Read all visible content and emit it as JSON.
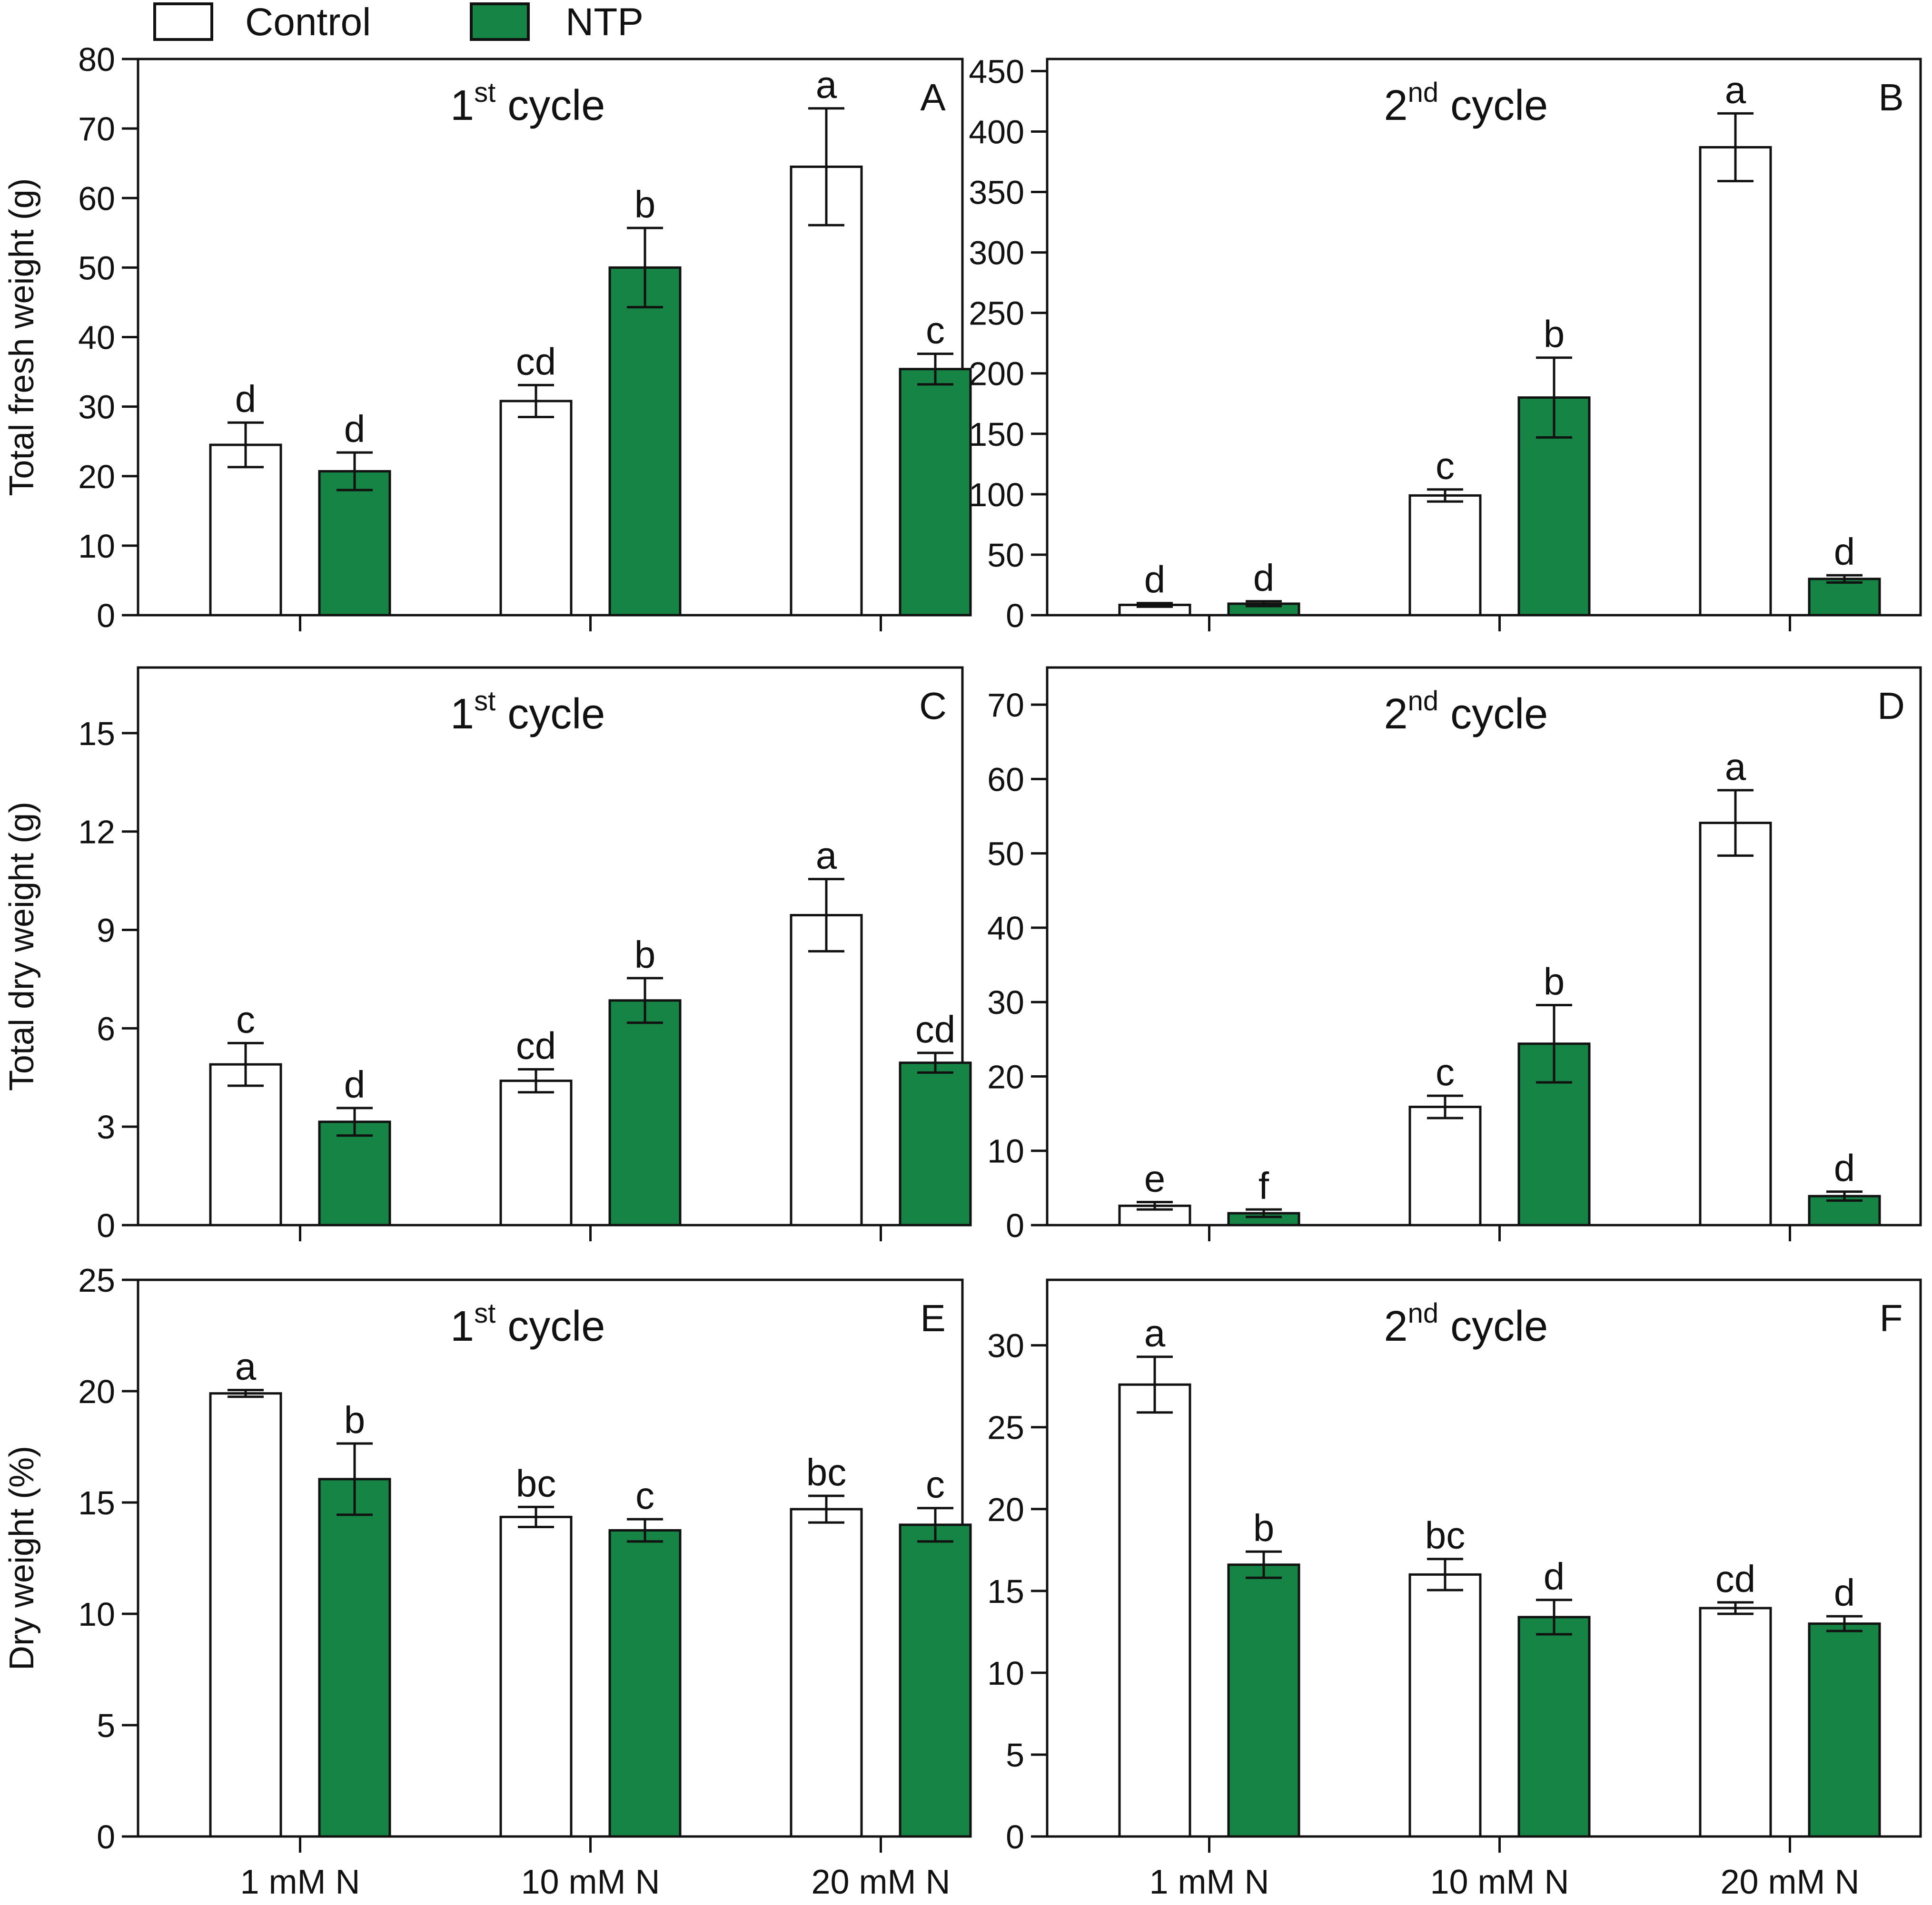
{
  "colors": {
    "control": "#ffffff",
    "ntp": "#168444",
    "stroke": "#111111"
  },
  "legend": [
    {
      "label": "Control",
      "color": "#ffffff"
    },
    {
      "label": "NTP",
      "color": "#168444"
    }
  ],
  "x_categories": [
    "1 mM N",
    "10 mM N",
    "20 mM N"
  ],
  "chart_data": [
    {
      "id": "A",
      "type": "bar",
      "letter": "A",
      "title_main": "1",
      "title_sup": "st",
      "title_rest": " cycle",
      "ylabel": "Total fresh weight (g)",
      "ylim": [
        0,
        80
      ],
      "yticks": [
        0,
        10,
        20,
        30,
        40,
        50,
        60,
        70,
        80
      ],
      "categories": [
        "1 mM N",
        "10 mM N",
        "20 mM N"
      ],
      "series": [
        {
          "name": "Control",
          "values": [
            24.5,
            30.8,
            64.5
          ],
          "errors": [
            3.2,
            2.3,
            8.4
          ],
          "sig": [
            "d",
            "cd",
            "a"
          ]
        },
        {
          "name": "NTP",
          "values": [
            20.7,
            50.0,
            35.4
          ],
          "errors": [
            2.7,
            5.7,
            2.2
          ],
          "sig": [
            "d",
            "b",
            "c"
          ]
        }
      ]
    },
    {
      "id": "B",
      "type": "bar",
      "letter": "B",
      "title_main": "2",
      "title_sup": "nd",
      "title_rest": " cycle",
      "ylabel": "",
      "ylim": [
        0,
        460
      ],
      "yticks": [
        0,
        50,
        100,
        150,
        200,
        250,
        300,
        350,
        400,
        450
      ],
      "categories": [
        "1 mM N",
        "10 mM N",
        "20 mM N"
      ],
      "series": [
        {
          "name": "Control",
          "values": [
            8.5,
            99,
            387
          ],
          "errors": [
            1.5,
            5,
            28
          ],
          "sig": [
            "d",
            "c",
            "a"
          ]
        },
        {
          "name": "NTP",
          "values": [
            9.5,
            180,
            30
          ],
          "errors": [
            2,
            33,
            3
          ],
          "sig": [
            "d",
            "b",
            "d"
          ]
        }
      ]
    },
    {
      "id": "C",
      "type": "bar",
      "letter": "C",
      "title_main": "1",
      "title_sup": "st",
      "title_rest": " cycle",
      "ylabel": "Total dry weight (g)",
      "ylim": [
        0,
        17
      ],
      "yticks": [
        0,
        3,
        6,
        9,
        12,
        15
      ],
      "categories": [
        "1 mM N",
        "10 mM N",
        "20 mM N"
      ],
      "series": [
        {
          "name": "Control",
          "values": [
            4.9,
            4.4,
            9.45
          ],
          "errors": [
            0.65,
            0.35,
            1.1
          ],
          "sig": [
            "c",
            "cd",
            "a"
          ]
        },
        {
          "name": "NTP",
          "values": [
            3.15,
            6.85,
            4.95
          ],
          "errors": [
            0.42,
            0.68,
            0.3
          ],
          "sig": [
            "d",
            "b",
            "cd"
          ]
        }
      ]
    },
    {
      "id": "D",
      "type": "bar",
      "letter": "D",
      "title_main": "2",
      "title_sup": "nd",
      "title_rest": " cycle",
      "ylabel": "",
      "ylim": [
        0,
        75
      ],
      "yticks": [
        0,
        10,
        20,
        30,
        40,
        50,
        60,
        70
      ],
      "categories": [
        "1 mM N",
        "10 mM N",
        "20 mM N"
      ],
      "series": [
        {
          "name": "Control",
          "values": [
            2.6,
            15.9,
            54.1
          ],
          "errors": [
            0.5,
            1.5,
            4.4
          ],
          "sig": [
            "e",
            "c",
            "a"
          ]
        },
        {
          "name": "NTP",
          "values": [
            1.6,
            24.4,
            3.9
          ],
          "errors": [
            0.5,
            5.2,
            0.6
          ],
          "sig": [
            "f",
            "b",
            "d"
          ]
        }
      ]
    },
    {
      "id": "E",
      "type": "bar",
      "letter": "E",
      "title_main": "1",
      "title_sup": "st",
      "title_rest": " cycle",
      "ylabel": "Dry weight (%)",
      "ylim": [
        0,
        25
      ],
      "yticks": [
        0,
        5,
        10,
        15,
        20,
        25
      ],
      "categories": [
        "1 mM N",
        "10 mM N",
        "20 mM N"
      ],
      "series": [
        {
          "name": "Control",
          "values": [
            19.9,
            14.35,
            14.7
          ],
          "errors": [
            0.15,
            0.45,
            0.6
          ],
          "sig": [
            "a",
            "bc",
            "bc"
          ]
        },
        {
          "name": "NTP",
          "values": [
            16.05,
            13.75,
            14.0
          ],
          "errors": [
            1.6,
            0.5,
            0.75
          ],
          "sig": [
            "b",
            "c",
            "c"
          ]
        }
      ]
    },
    {
      "id": "F",
      "type": "bar",
      "letter": "F",
      "title_main": "2",
      "title_sup": "nd",
      "title_rest": " cycle",
      "ylabel": "",
      "ylim": [
        0,
        34
      ],
      "yticks": [
        0,
        5,
        10,
        15,
        20,
        25,
        30
      ],
      "categories": [
        "1 mM N",
        "10 mM N",
        "20 mM N"
      ],
      "series": [
        {
          "name": "Control",
          "values": [
            27.6,
            16.0,
            13.95
          ],
          "errors": [
            1.7,
            0.95,
            0.35
          ],
          "sig": [
            "a",
            "bc",
            "cd"
          ]
        },
        {
          "name": "NTP",
          "values": [
            16.6,
            13.4,
            13.0
          ],
          "errors": [
            0.8,
            1.05,
            0.45
          ],
          "sig": [
            "b",
            "d",
            "d"
          ]
        }
      ]
    }
  ]
}
